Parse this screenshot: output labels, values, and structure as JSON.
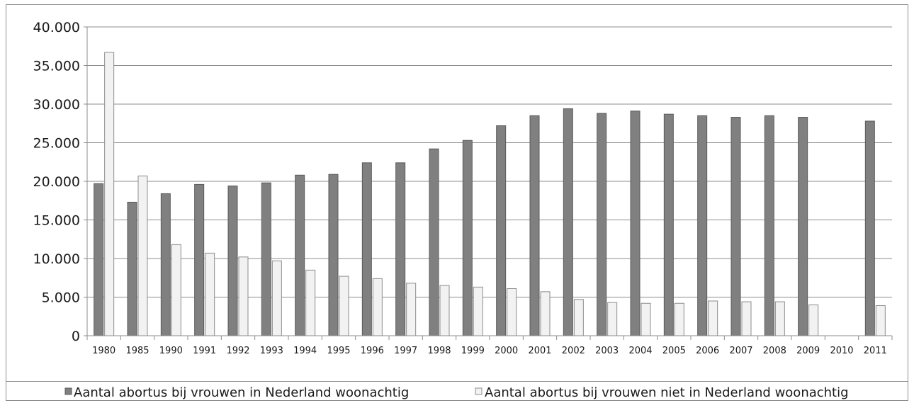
{
  "chart_data": {
    "type": "bar",
    "categories": [
      "1980",
      "1985",
      "1990",
      "1991",
      "1992",
      "1993",
      "1994",
      "1995",
      "1996",
      "1997",
      "1998",
      "1999",
      "2000",
      "2001",
      "2002",
      "2003",
      "2004",
      "2005",
      "2006",
      "2007",
      "2008",
      "2009",
      "2010",
      "2011"
    ],
    "series": [
      {
        "name": "Aantal abortus bij vrouwen in Nederland woonachtig",
        "color": "#808080",
        "values": [
          19700,
          17300,
          18400,
          19600,
          19400,
          19800,
          20800,
          20900,
          22400,
          22400,
          24200,
          25300,
          27200,
          28500,
          29400,
          28800,
          29100,
          28700,
          28500,
          28300,
          28500,
          28300,
          null,
          27800
        ]
      },
      {
        "name": "Aantal abortus bij vrouwen niet in Nederland woonachtig",
        "color": "#f2f2f2",
        "values": [
          36700,
          20700,
          11800,
          10700,
          10200,
          9700,
          8500,
          7700,
          7400,
          6800,
          6500,
          6300,
          6100,
          5700,
          4700,
          4300,
          4200,
          4200,
          4500,
          4400,
          4400,
          4000,
          null,
          3900
        ]
      }
    ],
    "y_tick_labels": [
      "0",
      "5.000",
      "10.000",
      "15.000",
      "20.000",
      "25.000",
      "30.000",
      "35.000",
      "40.000"
    ],
    "ylim": [
      0,
      40000
    ],
    "grid": true,
    "legend_position": "bottom",
    "title": "",
    "xlabel": "",
    "ylabel": ""
  }
}
